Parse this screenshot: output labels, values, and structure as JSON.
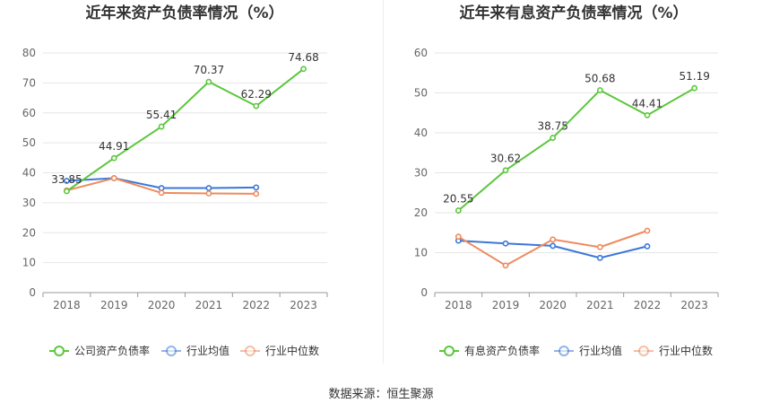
{
  "source": "数据来源：恒生聚源",
  "colors": {
    "company": "#5cc73d",
    "industry_avg": "#3b78d8",
    "industry_median": "#ee8a5e",
    "grid": "#e6e6e6",
    "axis": "#999999"
  },
  "chart_data": [
    {
      "type": "line",
      "title": "近年来资产负债率情况（%）",
      "categories": [
        "2018",
        "2019",
        "2020",
        "2021",
        "2022",
        "2023"
      ],
      "ylim": [
        0,
        80
      ],
      "yticks": [
        0,
        10,
        20,
        30,
        40,
        50,
        60,
        70,
        80
      ],
      "series": [
        {
          "name": "公司资产负债率",
          "color_key": "company",
          "values": [
            33.85,
            44.91,
            55.41,
            70.37,
            62.29,
            74.68
          ],
          "labels": [
            "33.85",
            "44.91",
            "55.41",
            "70.37",
            "62.29",
            "74.68"
          ]
        },
        {
          "name": "行业均值",
          "color_key": "industry_avg",
          "values": [
            37.3,
            38.2,
            34.9,
            34.9,
            35.1,
            null
          ]
        },
        {
          "name": "行业中位数",
          "color_key": "industry_median",
          "values": [
            34.1,
            38.2,
            33.3,
            33.1,
            33.0,
            null
          ]
        }
      ]
    },
    {
      "type": "line",
      "title": "近年来有息资产负债率情况（%）",
      "categories": [
        "2018",
        "2019",
        "2020",
        "2021",
        "2022",
        "2023"
      ],
      "ylim": [
        0,
        60
      ],
      "yticks": [
        0,
        10,
        20,
        30,
        40,
        50,
        60
      ],
      "series": [
        {
          "name": "有息资产负债率",
          "color_key": "company",
          "values": [
            20.55,
            30.62,
            38.75,
            50.68,
            44.41,
            51.19
          ],
          "labels": [
            "20.55",
            "30.62",
            "38.75",
            "50.68",
            "44.41",
            "51.19"
          ]
        },
        {
          "name": "行业均值",
          "color_key": "industry_avg",
          "values": [
            13.0,
            12.3,
            11.7,
            8.7,
            11.6,
            null
          ]
        },
        {
          "name": "行业中位数",
          "color_key": "industry_median",
          "values": [
            14.0,
            6.8,
            13.3,
            11.4,
            15.5,
            null
          ]
        }
      ]
    }
  ]
}
